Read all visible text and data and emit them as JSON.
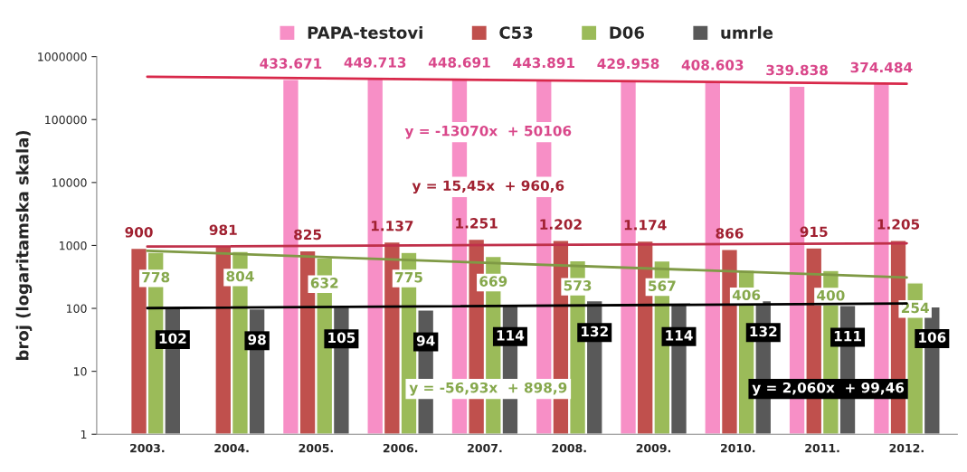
{
  "chart_data": {
    "type": "bar",
    "ylabel": "broj (logaritamska skala)",
    "categories": [
      "2003.",
      "2004.",
      "2005.",
      "2006.",
      "2007.",
      "2008.",
      "2009.",
      "2010.",
      "2011.",
      "2012."
    ],
    "series": [
      {
        "name": "PAPA-testovi",
        "color": "#f78fc6",
        "values": [
          null,
          null,
          433671,
          449713,
          448691,
          443891,
          429958,
          408603,
          339838,
          374484
        ],
        "value_labels": [
          null,
          null,
          "433.671",
          "449.713",
          "448.691",
          "443.891",
          "429.958",
          "408.603",
          "339.838",
          "374.484"
        ]
      },
      {
        "name": "C53",
        "color": "#c0504d",
        "values": [
          900,
          981,
          825,
          1137,
          1251,
          1202,
          1174,
          866,
          915,
          1205
        ],
        "value_labels": [
          "900",
          "981",
          "825",
          "1.137",
          "1.251",
          "1.202",
          "1.174",
          "866",
          "915",
          "1.205"
        ]
      },
      {
        "name": "D06",
        "color": "#9bbb59",
        "values": [
          778,
          804,
          632,
          775,
          669,
          573,
          567,
          406,
          400,
          254
        ],
        "value_labels": [
          "778",
          "804",
          "632",
          "775",
          "669",
          "573",
          "567",
          "406",
          "400",
          "254"
        ]
      },
      {
        "name": "umrle",
        "color": "#595959",
        "values": [
          102,
          98,
          105,
          94,
          114,
          132,
          114,
          132,
          111,
          106
        ],
        "value_labels": [
          "102",
          "98",
          "105",
          "94",
          "114",
          "132",
          "114",
          "132",
          "111",
          "106"
        ]
      },
      {
        "type": "line",
        "color": "#d8284a",
        "x": [
          "2003.",
          "2012."
        ],
        "values": [
          480000,
          370000
        ]
      },
      {
        "type": "line",
        "color": "#c0304a",
        "x": [
          "2003.",
          "2012."
        ],
        "values": [
          960,
          1080
        ]
      },
      {
        "type": "line",
        "color": "#7f9a45",
        "x": [
          "2003.",
          "2012."
        ],
        "values": [
          820,
          310
        ]
      },
      {
        "type": "line",
        "color": "#000000",
        "x": [
          "2003.",
          "2012."
        ],
        "values": [
          101,
          120
        ]
      }
    ],
    "annotations": [
      "y = -13070x  + 50106",
      "y = 15,45x  + 960,6",
      "y = -56,93x  + 898,9",
      "y = 2,060x  + 99,46"
    ],
    "log": "y",
    "ylim": [
      1,
      1000000
    ],
    "yticks": [
      1,
      10,
      100,
      1000,
      10000,
      100000,
      1000000
    ],
    "grid": false,
    "legend": "top"
  }
}
